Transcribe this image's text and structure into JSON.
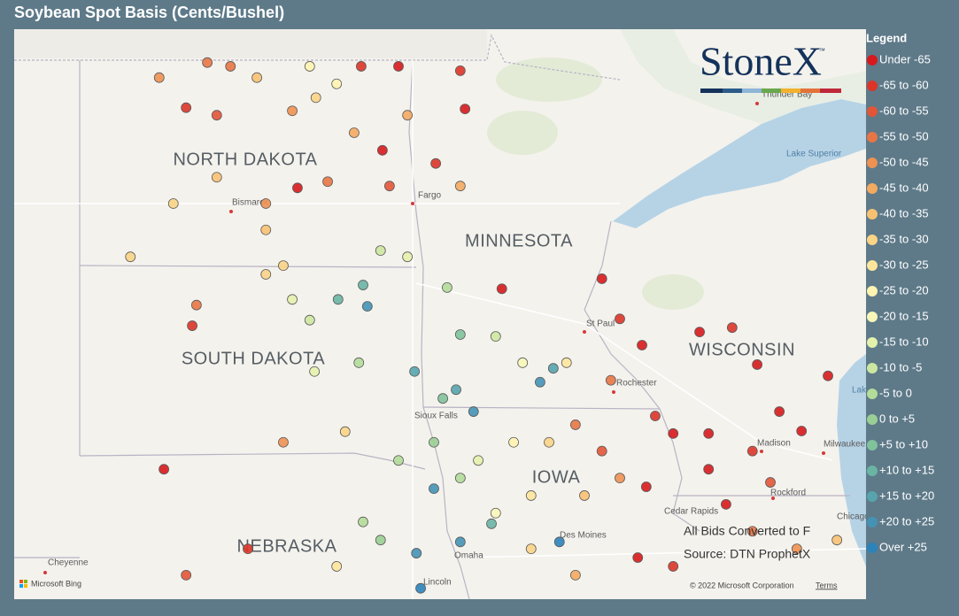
{
  "header": {
    "title": "Soybean Spot Basis (Cents/Bushel)"
  },
  "logo": {
    "text": "StoneX",
    "mark": "™"
  },
  "map_labels": {
    "states": [
      "NORTH DAKOTA",
      "MINNESOTA",
      "SOUTH DAKOTA",
      "WISCONSIN",
      "NEBRASKA",
      "IOWA"
    ],
    "cities": [
      "Bismarck",
      "Fargo",
      "St Paul",
      "Rochester",
      "Madison",
      "Milwaukee",
      "Rockford",
      "Cedar Rapids",
      "Des Moines",
      "Omaha",
      "Lincoln",
      "Cheyenne",
      "Sioux Falls",
      "Thunder Bay",
      "Chicago"
    ],
    "water": [
      "Lake Superior",
      "Lake Michi"
    ]
  },
  "notes": [
    "All Bids Converted to F",
    "Source: DTN ProphetX"
  ],
  "attribution": {
    "provider": "Microsoft Bing",
    "copyright": "© 2022 Microsoft Corporation",
    "terms": "Terms"
  },
  "legend": {
    "title": "Legend",
    "items": [
      {
        "label": "Under -65",
        "color": "#d7191c"
      },
      {
        "label": "-65 to -60",
        "color": "#dc3528"
      },
      {
        "label": "-60 to -55",
        "color": "#e25536"
      },
      {
        "label": "-55 to -50",
        "color": "#e87544"
      },
      {
        "label": "-50 to -45",
        "color": "#ee9151"
      },
      {
        "label": "-45 to -40",
        "color": "#f4aa60"
      },
      {
        "label": "-40 to -35",
        "color": "#f8c172"
      },
      {
        "label": "-35 to -30",
        "color": "#fbd486"
      },
      {
        "label": "-30 to -25",
        "color": "#fde69b"
      },
      {
        "label": "-25 to -20",
        "color": "#fff4b0"
      },
      {
        "label": "-20 to -15",
        "color": "#f7f7b8"
      },
      {
        "label": "-15 to -10",
        "color": "#e4f1ac"
      },
      {
        "label": "-10 to -5",
        "color": "#cde7a1"
      },
      {
        "label": "-5 to 0",
        "color": "#b3dc99"
      },
      {
        "label": "0 to +5",
        "color": "#99cf94"
      },
      {
        "label": "+5 to +10",
        "color": "#80c29a"
      },
      {
        "label": "+10 to +15",
        "color": "#6ab4a3"
      },
      {
        "label": "+15 to +20",
        "color": "#57a4ad"
      },
      {
        "label": "+20 to +25",
        "color": "#4592b5"
      },
      {
        "label": "Over +25",
        "color": "#2b83ba"
      }
    ]
  },
  "points": [
    [
      -101.14,
      49.13,
      3
    ],
    [
      -102.16,
      48.89,
      4
    ],
    [
      -101.59,
      48.41,
      1
    ],
    [
      -100.94,
      48.29,
      2
    ],
    [
      -100.09,
      48.89,
      6
    ],
    [
      -99.34,
      48.36,
      4
    ],
    [
      -98.84,
      48.57,
      7
    ],
    [
      -97.88,
      49.07,
      1
    ],
    [
      -97.09,
      49.07,
      0
    ],
    [
      -95.78,
      49.0,
      1
    ],
    [
      -95.68,
      48.39,
      0
    ],
    [
      -97.43,
      47.73,
      0
    ],
    [
      -96.3,
      47.52,
      1
    ],
    [
      -97.28,
      47.16,
      2
    ],
    [
      -99.23,
      47.13,
      0
    ],
    [
      -98.59,
      47.23,
      3
    ],
    [
      -99.9,
      46.88,
      4
    ],
    [
      -100.94,
      47.3,
      6
    ],
    [
      -101.86,
      46.88,
      7
    ],
    [
      -102.77,
      46.03,
      7
    ],
    [
      -101.46,
      44.93,
      1
    ],
    [
      -102.06,
      42.64,
      0
    ],
    [
      -101.37,
      45.26,
      3
    ],
    [
      -99.9,
      45.75,
      7
    ],
    [
      -99.53,
      45.89,
      7
    ],
    [
      -99.34,
      45.35,
      11
    ],
    [
      -98.97,
      45.02,
      12
    ],
    [
      -98.37,
      45.35,
      16
    ],
    [
      -97.84,
      45.58,
      16
    ],
    [
      -97.75,
      45.24,
      18
    ],
    [
      -98.87,
      44.2,
      11
    ],
    [
      -97.93,
      44.34,
      13
    ],
    [
      -98.22,
      43.24,
      7
    ],
    [
      -99.53,
      43.07,
      4
    ],
    [
      -96.75,
      44.2,
      17
    ],
    [
      -97.47,
      46.13,
      12
    ],
    [
      -96.9,
      46.03,
      11
    ],
    [
      -96.06,
      45.54,
      13
    ],
    [
      -95.78,
      44.79,
      15
    ],
    [
      -95.03,
      44.76,
      12
    ],
    [
      -94.46,
      44.34,
      10
    ],
    [
      -94.9,
      45.52,
      0
    ],
    [
      -94.09,
      44.03,
      18
    ],
    [
      -93.81,
      44.25,
      17
    ],
    [
      -93.53,
      44.34,
      8
    ],
    [
      -92.78,
      45.68,
      0
    ],
    [
      -92.4,
      45.04,
      1
    ],
    [
      -91.93,
      44.62,
      0
    ],
    [
      -90.71,
      44.83,
      0
    ],
    [
      -90.02,
      44.9,
      1
    ],
    [
      -89.49,
      44.31,
      0
    ],
    [
      -92.59,
      44.06,
      3
    ],
    [
      -91.65,
      43.49,
      1
    ],
    [
      -91.27,
      43.21,
      0
    ],
    [
      -90.52,
      43.21,
      0
    ],
    [
      -87.99,
      44.13,
      0
    ],
    [
      -89.02,
      43.56,
      0
    ],
    [
      -88.55,
      43.25,
      0
    ],
    [
      -89.59,
      42.93,
      1
    ],
    [
      -89.21,
      42.43,
      2
    ],
    [
      -90.15,
      42.08,
      0
    ],
    [
      -90.52,
      42.64,
      0
    ],
    [
      -96.15,
      43.77,
      15
    ],
    [
      -95.87,
      43.91,
      17
    ],
    [
      -95.5,
      43.56,
      18
    ],
    [
      -96.34,
      43.07,
      14
    ],
    [
      -95.4,
      42.78,
      11
    ],
    [
      -94.65,
      43.07,
      9
    ],
    [
      -93.9,
      43.07,
      7
    ],
    [
      -93.34,
      43.35,
      3
    ],
    [
      -92.78,
      42.93,
      2
    ],
    [
      -92.4,
      42.5,
      4
    ],
    [
      -91.84,
      42.36,
      0
    ],
    [
      -93.15,
      42.22,
      6
    ],
    [
      -94.28,
      42.22,
      8
    ],
    [
      -95.03,
      41.94,
      10
    ],
    [
      -96.34,
      42.33,
      18
    ],
    [
      -96.71,
      41.3,
      18
    ],
    [
      -96.62,
      40.74,
      19
    ],
    [
      -95.78,
      41.48,
      18
    ],
    [
      -95.12,
      41.77,
      16
    ],
    [
      -93.68,
      41.48,
      19
    ],
    [
      -97.47,
      41.51,
      14
    ],
    [
      -97.84,
      41.8,
      13
    ],
    [
      -98.4,
      41.09,
      8
    ],
    [
      -100.28,
      41.37,
      1
    ],
    [
      -101.59,
      40.95,
      2
    ],
    [
      -92.02,
      41.23,
      0
    ],
    [
      -91.27,
      41.09,
      1
    ],
    [
      -89.59,
      41.65,
      3
    ],
    [
      -88.65,
      41.37,
      4
    ],
    [
      -87.8,
      41.51,
      6
    ],
    [
      -93.34,
      40.95,
      5
    ],
    [
      -94.28,
      41.37,
      7
    ],
    [
      -97.09,
      42.78,
      13
    ],
    [
      -95.78,
      42.5,
      13
    ],
    [
      -99.9,
      46.46,
      6
    ],
    [
      -95.78,
      47.16,
      5
    ],
    [
      -98.03,
      48.01,
      5
    ],
    [
      -100.65,
      49.07,
      3
    ],
    [
      -96.9,
      48.29,
      5
    ],
    [
      -98.4,
      48.79,
      9
    ],
    [
      -98.97,
      49.07,
      9
    ]
  ]
}
